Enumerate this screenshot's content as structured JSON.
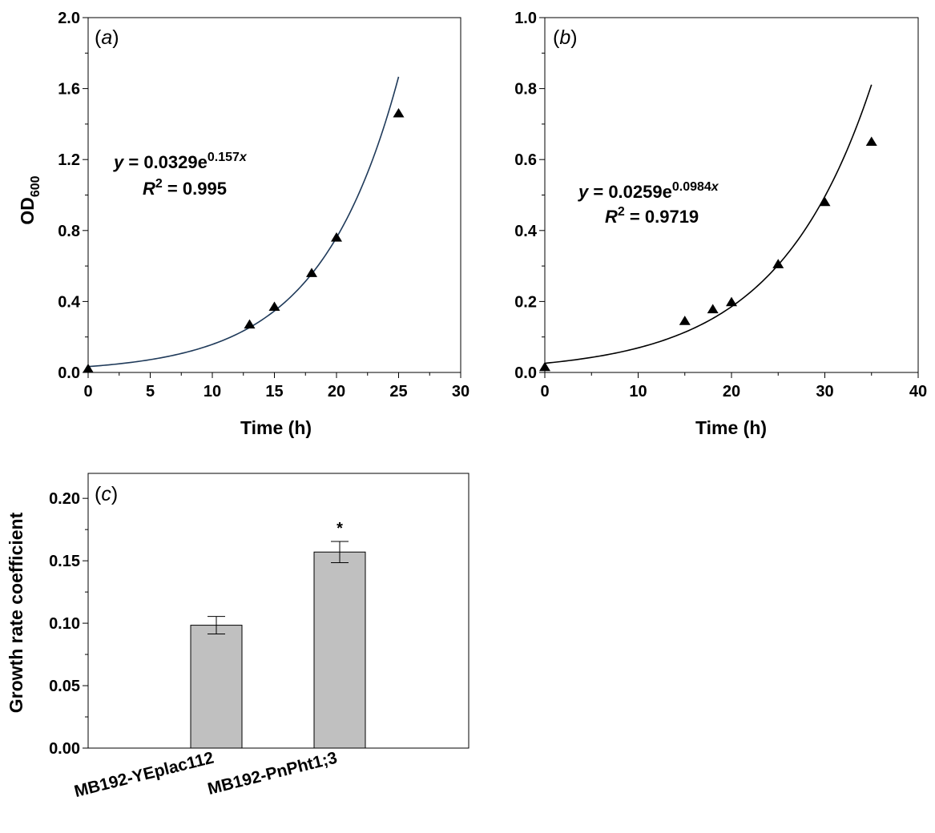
{
  "chart_data": [
    {
      "panel": "a",
      "type": "scatter",
      "xlabel": "Time (h)",
      "ylabel": "OD",
      "ylabel_sub": "600",
      "xlim": [
        0,
        30
      ],
      "ylim": [
        0,
        2.0
      ],
      "xticks": [
        "0",
        "5",
        "10",
        "15",
        "20",
        "25",
        "30"
      ],
      "yticks": [
        "0.0",
        "0.4",
        "0.8",
        "1.2",
        "1.6",
        "2.0"
      ],
      "points": {
        "x": [
          0,
          13,
          15,
          18,
          20,
          25
        ],
        "y": [
          0.02,
          0.27,
          0.37,
          0.56,
          0.76,
          1.46
        ]
      },
      "fit": {
        "a": 0.0329,
        "b": 0.157,
        "x_range": [
          0,
          25
        ]
      },
      "equation": {
        "lhs": "y",
        "eq": " = 0.0329e",
        "exp": "0.157",
        "exp_var": "x",
        "r_sym": "R",
        "r_sup": "2",
        "r_val": " = 0.995"
      }
    },
    {
      "panel": "b",
      "type": "scatter",
      "xlabel": "Time (h)",
      "xlim": [
        0,
        40
      ],
      "ylim": [
        0,
        1.0
      ],
      "xticks": [
        "0",
        "10",
        "20",
        "30",
        "40"
      ],
      "yticks": [
        "0.0",
        "0.2",
        "0.4",
        "0.6",
        "0.8",
        "1.0"
      ],
      "points": {
        "x": [
          0,
          15,
          18,
          20,
          25,
          30,
          35
        ],
        "y": [
          0.015,
          0.145,
          0.178,
          0.198,
          0.305,
          0.48,
          0.65
        ]
      },
      "fit": {
        "a": 0.0259,
        "b": 0.0984,
        "x_range": [
          0,
          35
        ]
      },
      "equation": {
        "lhs": "y",
        "eq": " = 0.0259e",
        "exp": "0.0984",
        "exp_var": "x",
        "r_sym": "R",
        "r_sup": "2",
        "r_val": " = 0.9719"
      }
    },
    {
      "panel": "c",
      "type": "bar",
      "ylabel": "Growth rate coefficient",
      "ylim": [
        0,
        0.22
      ],
      "yticks": [
        "0.00",
        "0.05",
        "0.10",
        "0.15",
        "0.20"
      ],
      "categories": [
        "MB192-YEplac112",
        "MB192-PnPht1;3"
      ],
      "values": [
        0.0984,
        0.157
      ],
      "errors": [
        0.007,
        0.0085
      ],
      "significance": [
        "",
        "*"
      ],
      "bar_color": "#c0c0c0"
    }
  ],
  "panel_labels": [
    "a",
    "b",
    "c"
  ]
}
